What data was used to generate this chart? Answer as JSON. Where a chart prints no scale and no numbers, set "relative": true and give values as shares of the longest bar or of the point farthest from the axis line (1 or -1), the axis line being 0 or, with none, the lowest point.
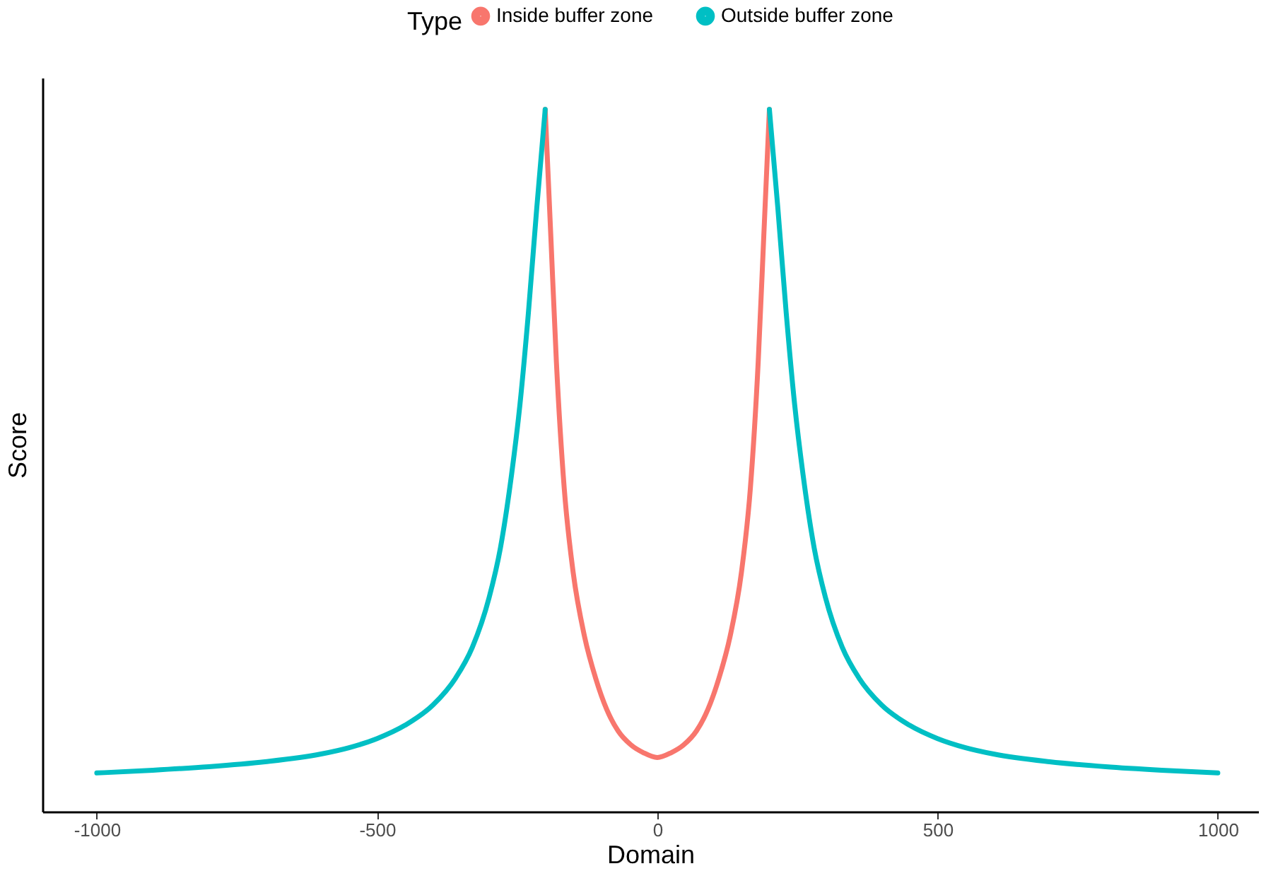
{
  "chart_data": {
    "type": "line",
    "xlabel": "Domain",
    "ylabel": "Score",
    "legend_title": "Type",
    "legend": "top",
    "grid": false,
    "relative": true,
    "xlim": [
      -1097,
      1072
    ],
    "xticks": [
      -1000,
      -500,
      0,
      500,
      1000
    ],
    "series": [
      {
        "name": "Inside buffer zone",
        "color": "#f8766d",
        "x": [
          -200,
          -190,
          -180,
          -166,
          -150,
          -130,
          -110,
          -90,
          -70,
          -47,
          -25,
          0,
          25,
          47,
          70,
          90,
          110,
          130,
          150,
          166,
          180,
          190,
          200
        ],
        "values": [
          1,
          0.82,
          0.64,
          0.46,
          0.34,
          0.25,
          0.19,
          0.145,
          0.115,
          0.095,
          0.084,
          0.077,
          0.084,
          0.095,
          0.115,
          0.145,
          0.19,
          0.25,
          0.34,
          0.46,
          0.64,
          0.82,
          1
        ]
      },
      {
        "name": "Outside buffer zone",
        "color": "#00bfc4",
        "x": [
          -1000,
          -900,
          -800,
          -700,
          -600,
          -550,
          -500,
          -450,
          -400,
          -360,
          -330,
          -300,
          -280,
          -260,
          -245,
          -230,
          -215,
          -200,
          0,
          200,
          215,
          230,
          245,
          260,
          280,
          300,
          330,
          360,
          400,
          450,
          500,
          550,
          600,
          700,
          800,
          900,
          1000
        ],
        "values": [
          0.055,
          0.059,
          0.064,
          0.071,
          0.082,
          0.091,
          0.104,
          0.123,
          0.152,
          0.19,
          0.234,
          0.305,
          0.375,
          0.48,
          0.58,
          0.71,
          0.86,
          1,
          null,
          1,
          0.86,
          0.71,
          0.58,
          0.48,
          0.375,
          0.305,
          0.234,
          0.19,
          0.152,
          0.123,
          0.104,
          0.091,
          0.082,
          0.071,
          0.064,
          0.059,
          0.055
        ]
      }
    ]
  }
}
